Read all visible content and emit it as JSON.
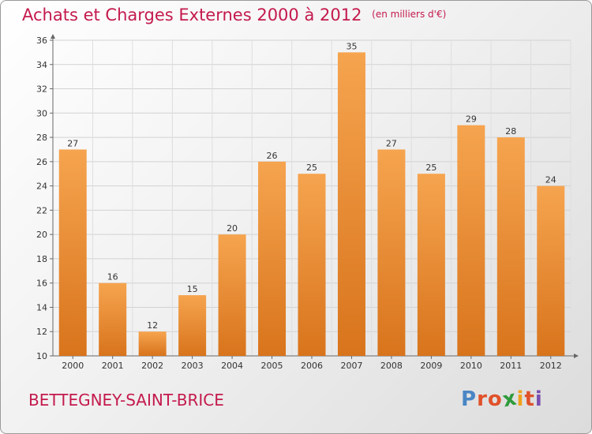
{
  "header": {
    "title": "Achats et Charges Externes 2000 à 2012",
    "subtitle": "(en milliers d'€)"
  },
  "footer": {
    "location": "BETTEGNEY-SAINT-BRICE",
    "brand": [
      "P",
      "r",
      "o",
      "x",
      "i",
      "t",
      "i"
    ]
  },
  "colors": {
    "bar_top": "#f6a44f",
    "bar_bottom": "#d8741c",
    "title": "#c41a4d",
    "brand": [
      "#4a86c5",
      "#e0522a",
      "#e0522a",
      "#2e9a3a",
      "#f0a21c",
      "#e0522a",
      "#7a4fb0"
    ]
  },
  "chart_data": {
    "type": "bar",
    "title": "Achats et Charges Externes 2000 à 2012",
    "subtitle": "(en milliers d'€)",
    "categories": [
      "2000",
      "2001",
      "2002",
      "2003",
      "2004",
      "2005",
      "2006",
      "2007",
      "2008",
      "2009",
      "2010",
      "2011",
      "2012"
    ],
    "values": [
      27,
      16,
      12,
      15,
      20,
      26,
      25,
      35,
      27,
      25,
      29,
      28,
      24
    ],
    "ylim": [
      10,
      36
    ],
    "yticks": [
      10,
      12,
      14,
      16,
      18,
      20,
      22,
      24,
      26,
      28,
      30,
      32,
      34,
      36
    ],
    "grid": true,
    "data_labels": true
  }
}
